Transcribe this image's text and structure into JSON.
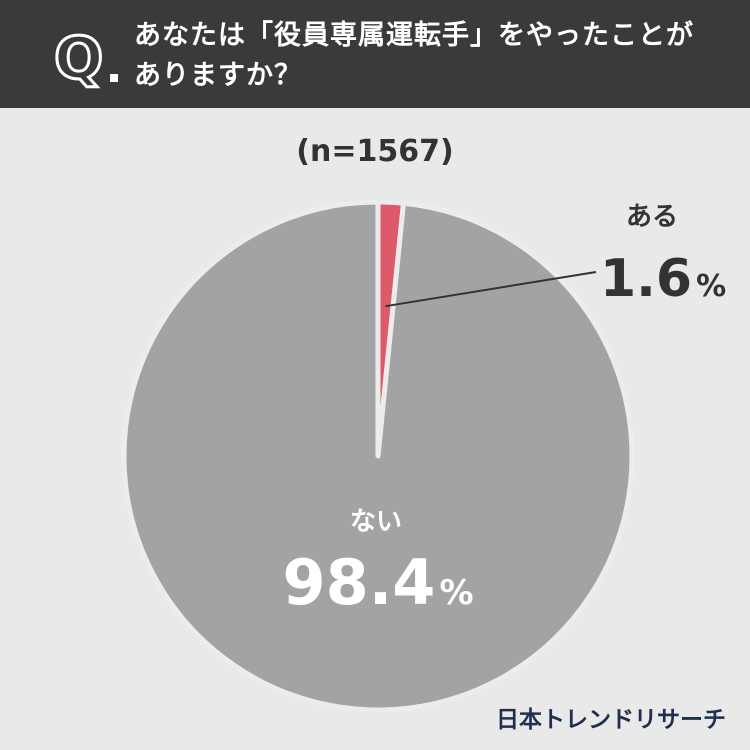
{
  "header": {
    "q_letter": "Q",
    "question_line1": "あなたは「役員専属運転手」をやったことが",
    "question_line2": "ありますか？"
  },
  "sample_size": "(n=1567)",
  "brand": "日本トレンドリサーチ",
  "colors": {
    "header_bg": "#3a3a3a",
    "background": "#e9e9ea",
    "yes_slice": "#dd5a6b",
    "no_slice": "#a4a3a4"
  },
  "chart_data": {
    "type": "pie",
    "slices": [
      {
        "label": "ある",
        "value": 1.6,
        "display": "1.6",
        "unit": "%",
        "color": "#dd5a6b"
      },
      {
        "label": "ない",
        "value": 98.4,
        "display": "98.4",
        "unit": "%",
        "color": "#a4a3a4"
      }
    ]
  }
}
